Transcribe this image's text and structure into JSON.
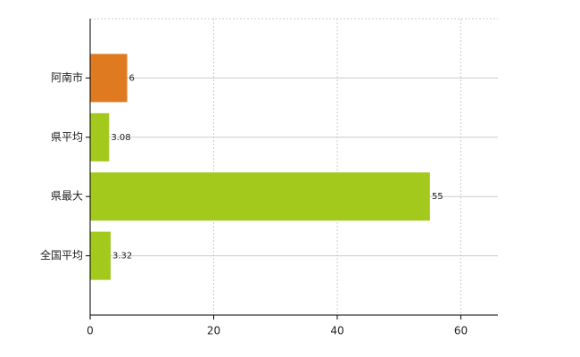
{
  "chart_data": {
    "type": "bar",
    "orientation": "horizontal",
    "categories": [
      "阿南市",
      "県平均",
      "県最大",
      "全国平均"
    ],
    "values": [
      6,
      3.08,
      55,
      3.32
    ],
    "colors": [
      "#e07a20",
      "#a2c91c",
      "#a2c91c",
      "#a2c91c"
    ],
    "xlim": [
      0,
      66
    ],
    "xticks": [
      0,
      20,
      40,
      60
    ],
    "grid": true
  }
}
